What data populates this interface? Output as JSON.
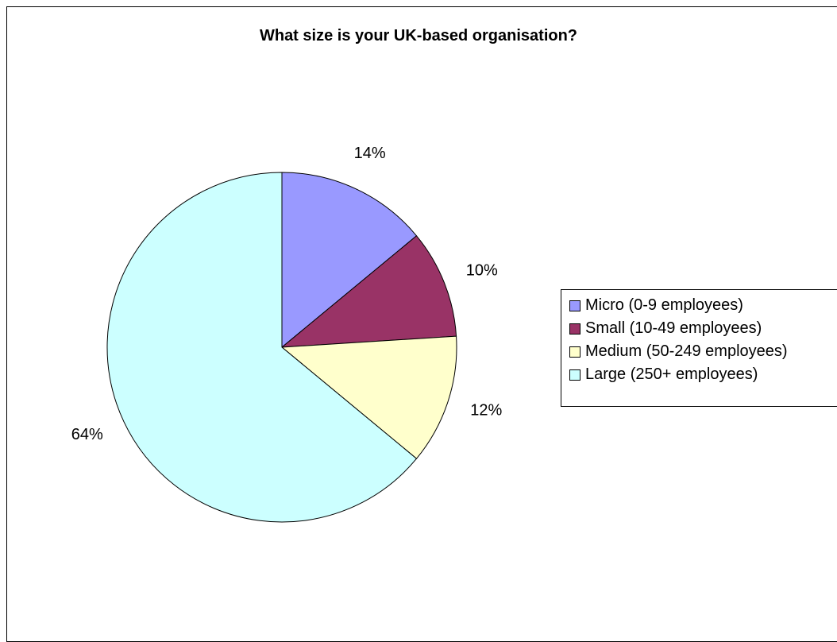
{
  "chart_data": {
    "type": "pie",
    "title": "What size is your UK-based organisation?",
    "categories": [
      "Micro (0-9 employees)",
      "Small (10-49 employees)",
      "Medium (50-249 employees)",
      "Large (250+ employees)"
    ],
    "values": [
      14,
      10,
      12,
      64
    ],
    "labels": [
      "14%",
      "10%",
      "12%",
      "64%"
    ],
    "colors": [
      "#9999FF",
      "#993366",
      "#FFFFCC",
      "#CCFFFF"
    ],
    "legend": "right",
    "start": "top, clockwise"
  }
}
